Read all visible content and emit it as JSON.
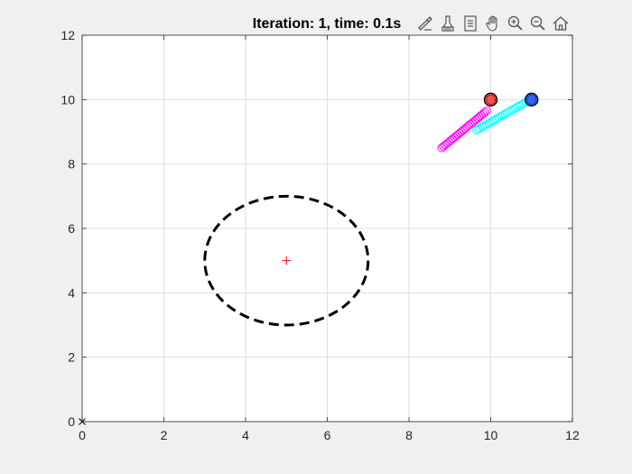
{
  "chart_data": {
    "type": "scatter",
    "title": "Iteration: 1, time: 0.1s",
    "xlim": [
      0,
      12
    ],
    "ylim": [
      0,
      12
    ],
    "xticks": [
      0,
      2,
      4,
      6,
      8,
      10,
      12
    ],
    "yticks": [
      0,
      2,
      4,
      6,
      8,
      10,
      12
    ],
    "grid": true,
    "circle": {
      "center": [
        5,
        5
      ],
      "radius_x": 2,
      "radius_y": 2,
      "style": "dashed",
      "color": "#000000"
    },
    "center_marker": {
      "x": 5,
      "y": 5,
      "marker": "+",
      "color": "#ff0000"
    },
    "origin_marker": {
      "x": 0,
      "y": 0,
      "marker": "x",
      "color": "#000000"
    },
    "series": [
      {
        "color": "#ff00ff",
        "trail": {
          "start": [
            8.8,
            8.5
          ],
          "end": [
            9.9,
            9.65
          ],
          "count": 26
        },
        "head": {
          "x": 10,
          "y": 10,
          "color": "#ff4d4d"
        }
      },
      {
        "color": "#00ffff",
        "trail": {
          "start": [
            9.65,
            9.05
          ],
          "end": [
            10.9,
            9.95
          ],
          "count": 26
        },
        "head": {
          "x": 11,
          "y": 10,
          "color": "#3366ff"
        }
      }
    ]
  },
  "toolbar": {
    "items": [
      {
        "name": "brush-icon"
      },
      {
        "name": "data-tips-icon"
      },
      {
        "name": "legend-icon"
      },
      {
        "name": "pan-icon"
      },
      {
        "name": "zoom-in-icon"
      },
      {
        "name": "zoom-out-icon"
      },
      {
        "name": "home-icon"
      }
    ]
  }
}
